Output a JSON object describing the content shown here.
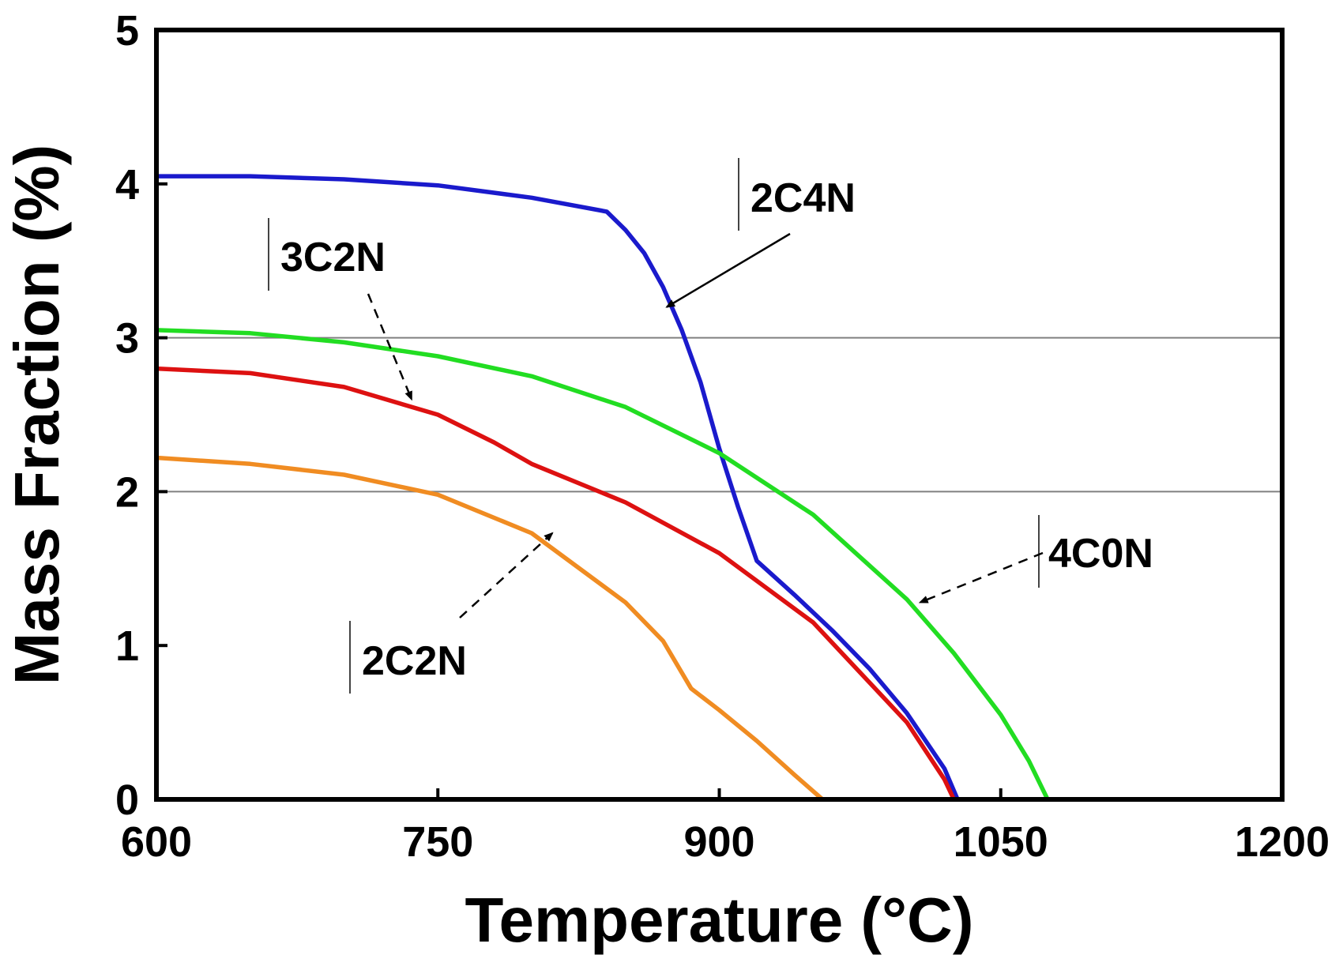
{
  "chart_data": {
    "type": "line",
    "title": "",
    "xlabel": "Temperature (°C)",
    "ylabel": "Mass Fraction (%)",
    "xlim": [
      600,
      1200
    ],
    "ylim": [
      0,
      5
    ],
    "xticks": [
      600,
      750,
      900,
      1050,
      1200
    ],
    "yticks": [
      0,
      1,
      2,
      3,
      4,
      5
    ],
    "grid": "horizontal lines at 2 and 3",
    "grid_y": [
      2,
      3
    ],
    "series": [
      {
        "name": "2C4N",
        "color": "#1a1acc",
        "x": [
          600,
          650,
          700,
          750,
          800,
          840,
          850,
          860,
          870,
          880,
          890,
          900,
          910,
          920,
          940,
          960,
          980,
          1000,
          1020,
          1027
        ],
        "y": [
          4.05,
          4.05,
          4.03,
          3.99,
          3.91,
          3.82,
          3.7,
          3.55,
          3.33,
          3.05,
          2.71,
          2.28,
          1.9,
          1.55,
          1.33,
          1.1,
          0.85,
          0.56,
          0.2,
          0.0
        ]
      },
      {
        "name": "4C0N",
        "color": "#22dd22",
        "x": [
          600,
          650,
          700,
          750,
          800,
          850,
          900,
          950,
          1000,
          1025,
          1050,
          1065,
          1075
        ],
        "y": [
          3.05,
          3.03,
          2.97,
          2.88,
          2.75,
          2.55,
          2.25,
          1.85,
          1.3,
          0.95,
          0.55,
          0.25,
          0.0
        ]
      },
      {
        "name": "3C2N",
        "color": "#dd1111",
        "x": [
          600,
          650,
          700,
          750,
          780,
          800,
          850,
          900,
          950,
          1000,
          1020,
          1025
        ],
        "y": [
          2.8,
          2.77,
          2.68,
          2.5,
          2.32,
          2.18,
          1.93,
          1.6,
          1.15,
          0.5,
          0.13,
          0.0
        ]
      },
      {
        "name": "2C2N",
        "color": "#f08c22",
        "x": [
          600,
          650,
          700,
          750,
          800,
          850,
          870,
          885,
          900,
          920,
          940,
          955
        ],
        "y": [
          2.22,
          2.18,
          2.11,
          1.98,
          1.73,
          1.28,
          1.03,
          0.72,
          0.58,
          0.38,
          0.16,
          0.0
        ]
      }
    ],
    "annotations": [
      {
        "text": "2C4N",
        "series": "2C4N",
        "point": [
          872,
          3.2
        ]
      },
      {
        "text": "3C2N",
        "series": "3C2N",
        "point": [
          736,
          2.6
        ]
      },
      {
        "text": "4C0N",
        "series": "4C0N",
        "point": [
          1007,
          1.28
        ]
      },
      {
        "text": "2C2N",
        "series": "2C2N",
        "point": [
          811,
          1.73
        ]
      }
    ]
  }
}
